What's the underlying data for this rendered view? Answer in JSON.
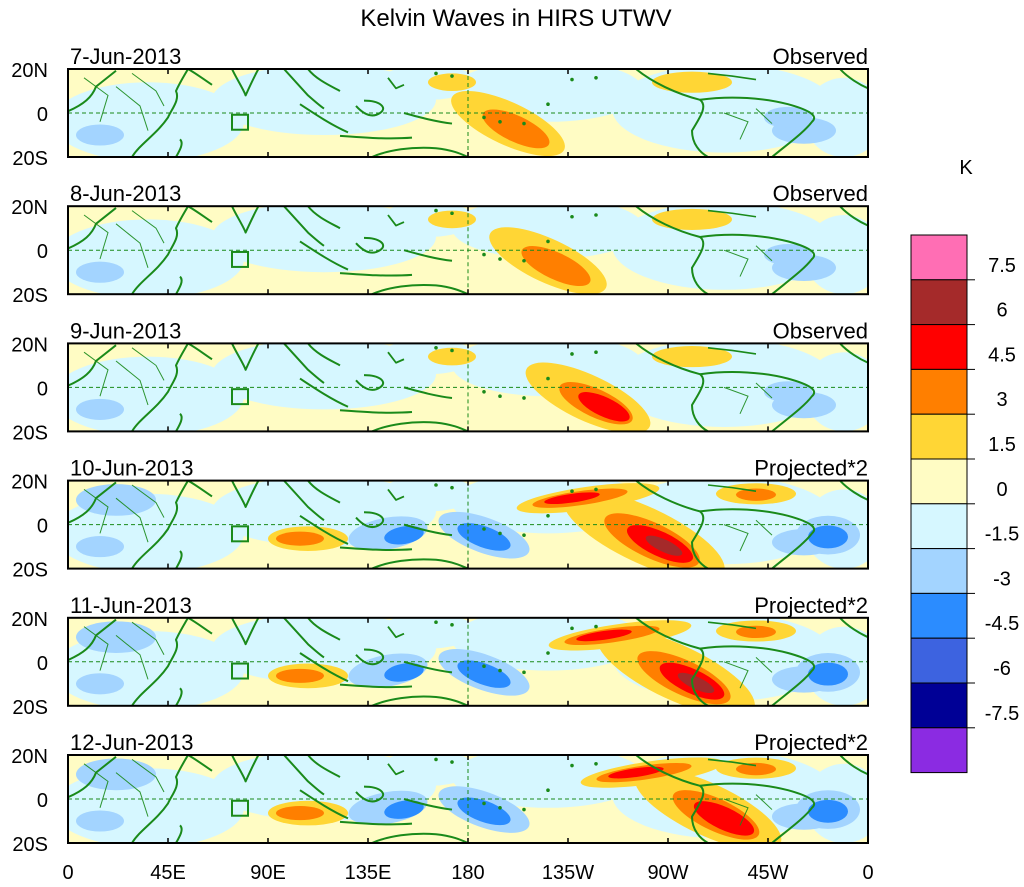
{
  "title": "Kelvin Waves in HIRS UTWV",
  "colorbar": {
    "unit": "K",
    "levels": [
      "7.5",
      "6",
      "4.5",
      "3",
      "1.5",
      "0",
      "-1.5",
      "-3",
      "-4.5",
      "-6",
      "-7.5"
    ],
    "colors": [
      "#ff6eb4",
      "#a52a2a",
      "#ff0000",
      "#ff7f00",
      "#ffd635",
      "#fffcc4",
      "#d6f7ff",
      "#a3d4ff",
      "#2b8cff",
      "#3d63e0",
      "#000096",
      "#8b2be2"
    ]
  },
  "x_ticks": [
    "0",
    "45E",
    "90E",
    "135E",
    "180",
    "135W",
    "90W",
    "45W",
    "0"
  ],
  "y_ticks": [
    "20N",
    "0",
    "20S"
  ],
  "panels": [
    {
      "date": "7-Jun-2013",
      "label": "Observed",
      "amp": 0.35,
      "pos": 0.55
    },
    {
      "date": "8-Jun-2013",
      "label": "Observed",
      "amp": 0.4,
      "pos": 0.6
    },
    {
      "date": "9-Jun-2013",
      "label": "Observed",
      "amp": 0.5,
      "pos": 0.65
    },
    {
      "date": "10-Jun-2013",
      "label": "Projected*2",
      "amp": 1.0,
      "pos": 0.72
    },
    {
      "date": "11-Jun-2013",
      "label": "Projected*2",
      "amp": 0.95,
      "pos": 0.76
    },
    {
      "date": "12-Jun-2013",
      "label": "Projected*2",
      "amp": 0.8,
      "pos": 0.8
    }
  ],
  "colors": {
    "coast": "#1a8a1a",
    "frame": "#000000",
    "guide": "#1a8a1a"
  }
}
